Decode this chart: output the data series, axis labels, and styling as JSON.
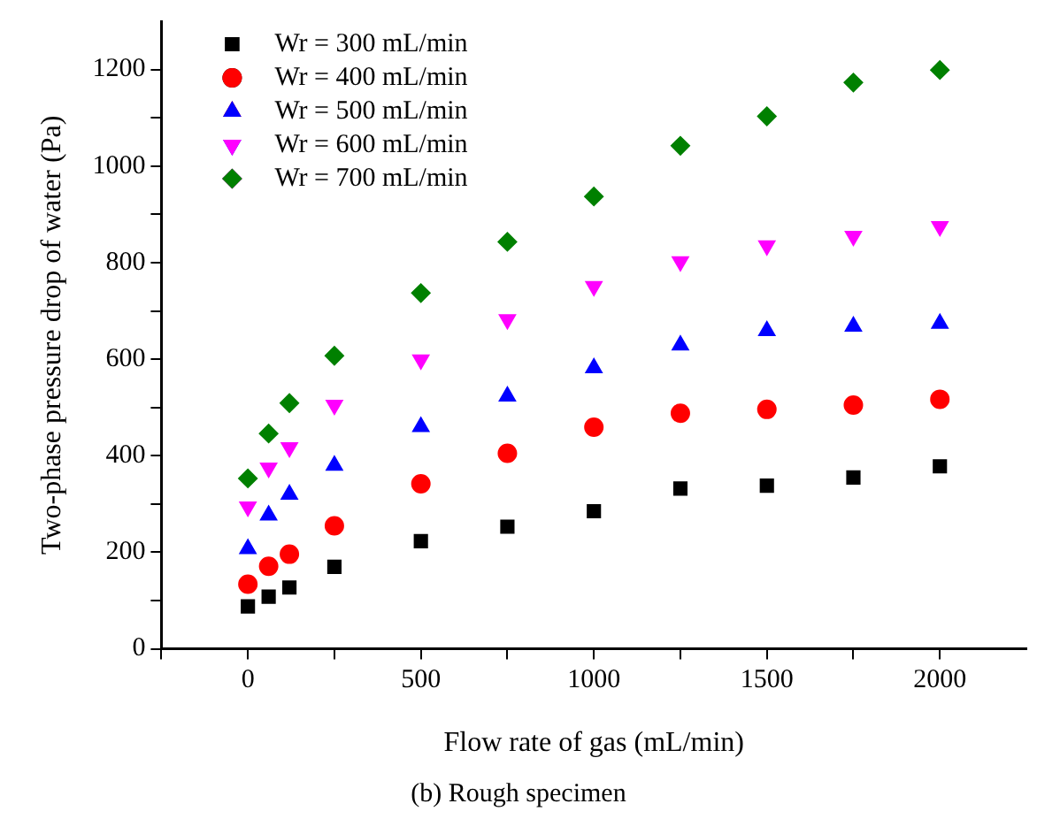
{
  "chart_data": {
    "type": "scatter",
    "xlabel": "Flow rate of gas (mL/min)",
    "ylabel": "Two-phase pressure drop of water (Pa)",
    "annotations": [
      "(b) Rough specimen"
    ],
    "x": [
      0,
      60,
      120,
      250,
      500,
      750,
      1000,
      1250,
      1500,
      1750,
      2000
    ],
    "series": [
      {
        "name": "Wr = 300 mL/min",
        "color": "#000000",
        "marker": "square",
        "values": [
          88,
          108,
          127,
          170,
          223,
          253,
          285,
          332,
          338,
          355,
          378
        ]
      },
      {
        "name": "Wr = 400 mL/min",
        "color": "#ff0000",
        "marker": "circle",
        "values": [
          134,
          171,
          196,
          255,
          342,
          405,
          459,
          488,
          496,
          505,
          517
        ]
      },
      {
        "name": "Wr = 500 mL/min",
        "color": "#0000ff",
        "marker": "triangle",
        "values": [
          207,
          277,
          320,
          380,
          460,
          523,
          582,
          629,
          659,
          668,
          674
        ]
      },
      {
        "name": "Wr = 600 mL/min",
        "color": "#ff00ff",
        "marker": "triangle-down",
        "values": [
          294,
          375,
          417,
          505,
          599,
          682,
          751,
          802,
          835,
          855,
          875
        ]
      },
      {
        "name": "Wr = 700 mL/min",
        "color": "#008000",
        "marker": "diamond",
        "values": [
          353,
          446,
          509,
          607,
          737,
          843,
          937,
          1042,
          1103,
          1173,
          1199
        ]
      }
    ],
    "xlim": [
      -250,
      2250
    ],
    "ylim": [
      0,
      1300
    ],
    "xticks": [
      {
        "value": -250,
        "label": null
      },
      0,
      {
        "value": 250,
        "label": null
      },
      500,
      {
        "value": 750,
        "label": null
      },
      1000,
      {
        "value": 1250,
        "label": null
      },
      1500,
      {
        "value": 1750,
        "label": null
      },
      2000
    ],
    "yticks": [
      0,
      {
        "value": 100,
        "label": null
      },
      200,
      {
        "value": 300,
        "label": null
      },
      400,
      {
        "value": 500,
        "label": null
      },
      600,
      {
        "value": 700,
        "label": null
      },
      800,
      {
        "value": 900,
        "label": null
      },
      1000,
      {
        "value": 1100,
        "label": null
      },
      1200
    ],
    "grid": false,
    "legend": "top left"
  }
}
